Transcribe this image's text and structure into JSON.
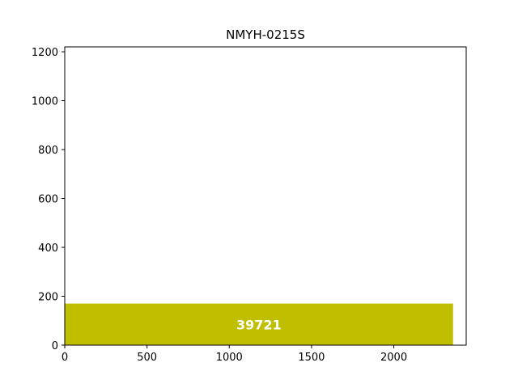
{
  "chart_data": {
    "type": "bar",
    "orientation": "horizontal",
    "title": "NMYH-0215S",
    "xlabel": "",
    "ylabel": "",
    "xlim": [
      0,
      2440
    ],
    "ylim": [
      0,
      1220
    ],
    "x_ticks": [
      0,
      500,
      1000,
      1500,
      2000
    ],
    "y_ticks": [
      0,
      200,
      400,
      600,
      800,
      1000,
      1200
    ],
    "grid": false,
    "bars": [
      {
        "x_start": 0,
        "x_end": 2360,
        "y_start": 0,
        "y_end": 170,
        "label": "39721",
        "color": "#bfbf00",
        "label_color": "#ffffff"
      }
    ]
  }
}
